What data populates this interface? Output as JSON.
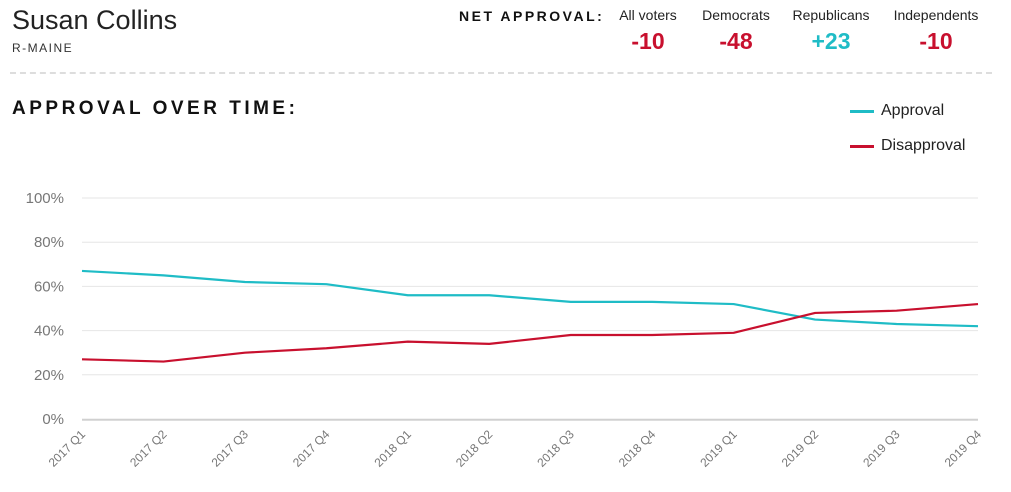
{
  "header": {
    "name": "Susan Collins",
    "state": "R-MAINE"
  },
  "net_approval": {
    "label": "NET APPROVAL:",
    "groups": [
      {
        "name": "All voters",
        "value": "-10",
        "color": "#c8102e"
      },
      {
        "name": "Democrats",
        "value": "-48",
        "color": "#c8102e"
      },
      {
        "name": "Republicans",
        "value": "+23",
        "color": "#1fbcc6"
      },
      {
        "name": "Independents",
        "value": "-10",
        "color": "#c8102e"
      }
    ]
  },
  "section_title": "APPROVAL OVER TIME:",
  "colors": {
    "approval": "#1fbcc6",
    "disapproval": "#c8102e",
    "grid": "#e6e6e6",
    "tick_text": "#777777"
  },
  "chart_data": {
    "type": "line",
    "title": "APPROVAL OVER TIME:",
    "categories": [
      "2017 Q1",
      "2017 Q2",
      "2017 Q3",
      "2017 Q4",
      "2018 Q1",
      "2018 Q2",
      "2018 Q3",
      "2018 Q4",
      "2019 Q1",
      "2019 Q2",
      "2019 Q3",
      "2019 Q4"
    ],
    "series": [
      {
        "name": "Approval",
        "color": "#1fbcc6",
        "values": [
          67,
          65,
          62,
          61,
          56,
          56,
          53,
          53,
          52,
          45,
          43,
          42
        ]
      },
      {
        "name": "Disapproval",
        "color": "#c8102e",
        "values": [
          27,
          26,
          30,
          32,
          35,
          34,
          38,
          38,
          39,
          48,
          49,
          52
        ]
      }
    ],
    "ylim": [
      0,
      100
    ],
    "yticks": [
      "0%",
      "20%",
      "40%",
      "60%",
      "80%",
      "100%"
    ],
    "ytick_values": [
      0,
      20,
      40,
      60,
      80,
      100
    ],
    "grid": true,
    "legend": "top-right"
  }
}
